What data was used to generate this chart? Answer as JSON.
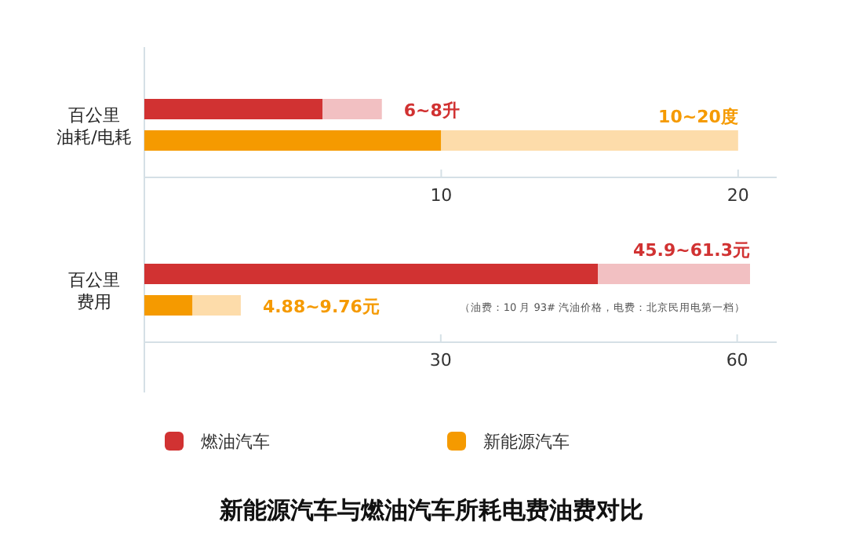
{
  "chart_data": [
    {
      "type": "bar",
      "orientation": "horizontal",
      "stacked": true,
      "ylabel": "百公里油耗/电耗",
      "categories": [
        null,
        null
      ],
      "tick_labels": "x",
      "xlim": [
        0,
        21.3
      ],
      "xticks": [
        10,
        20
      ],
      "series": [
        {
          "color": "#d13232",
          "values": [
            6,
            null
          ]
        },
        {
          "color": "#f59a00",
          "values": [
            null,
            10
          ]
        },
        {
          "color": "#f2c0c2",
          "values": [
            2,
            null
          ]
        },
        {
          "color": "#fddcaa",
          "values": [
            null,
            10
          ]
        }
      ],
      "annotations": [
        "6~8升",
        "10~20度"
      ]
    },
    {
      "type": "bar",
      "orientation": "horizontal",
      "stacked": true,
      "ylabel": "百公里费用",
      "categories": [
        null,
        null
      ],
      "tick_labels": "x",
      "xlim": [
        0,
        64
      ],
      "xticks": [
        30,
        60
      ],
      "legend": "bottom",
      "title": "新能源汽车与燃油汽车所耗电费油费对比",
      "series": [
        {
          "name": "燃油汽车",
          "color": "#d13232",
          "values": [
            45.9,
            null
          ]
        },
        {
          "name": "新能源汽车",
          "color": "#f59a00",
          "values": [
            null,
            4.88
          ]
        },
        {
          "color": "#f2c0c2",
          "values": [
            15.4,
            null
          ]
        },
        {
          "color": "#fddcaa",
          "values": [
            null,
            4.88
          ]
        }
      ],
      "annotations": [
        "45.9~61.3元",
        "4.88~9.76元",
        "（油费：10 月 93# 汽油价格，电费：北京民用电第一档）"
      ]
    }
  ]
}
